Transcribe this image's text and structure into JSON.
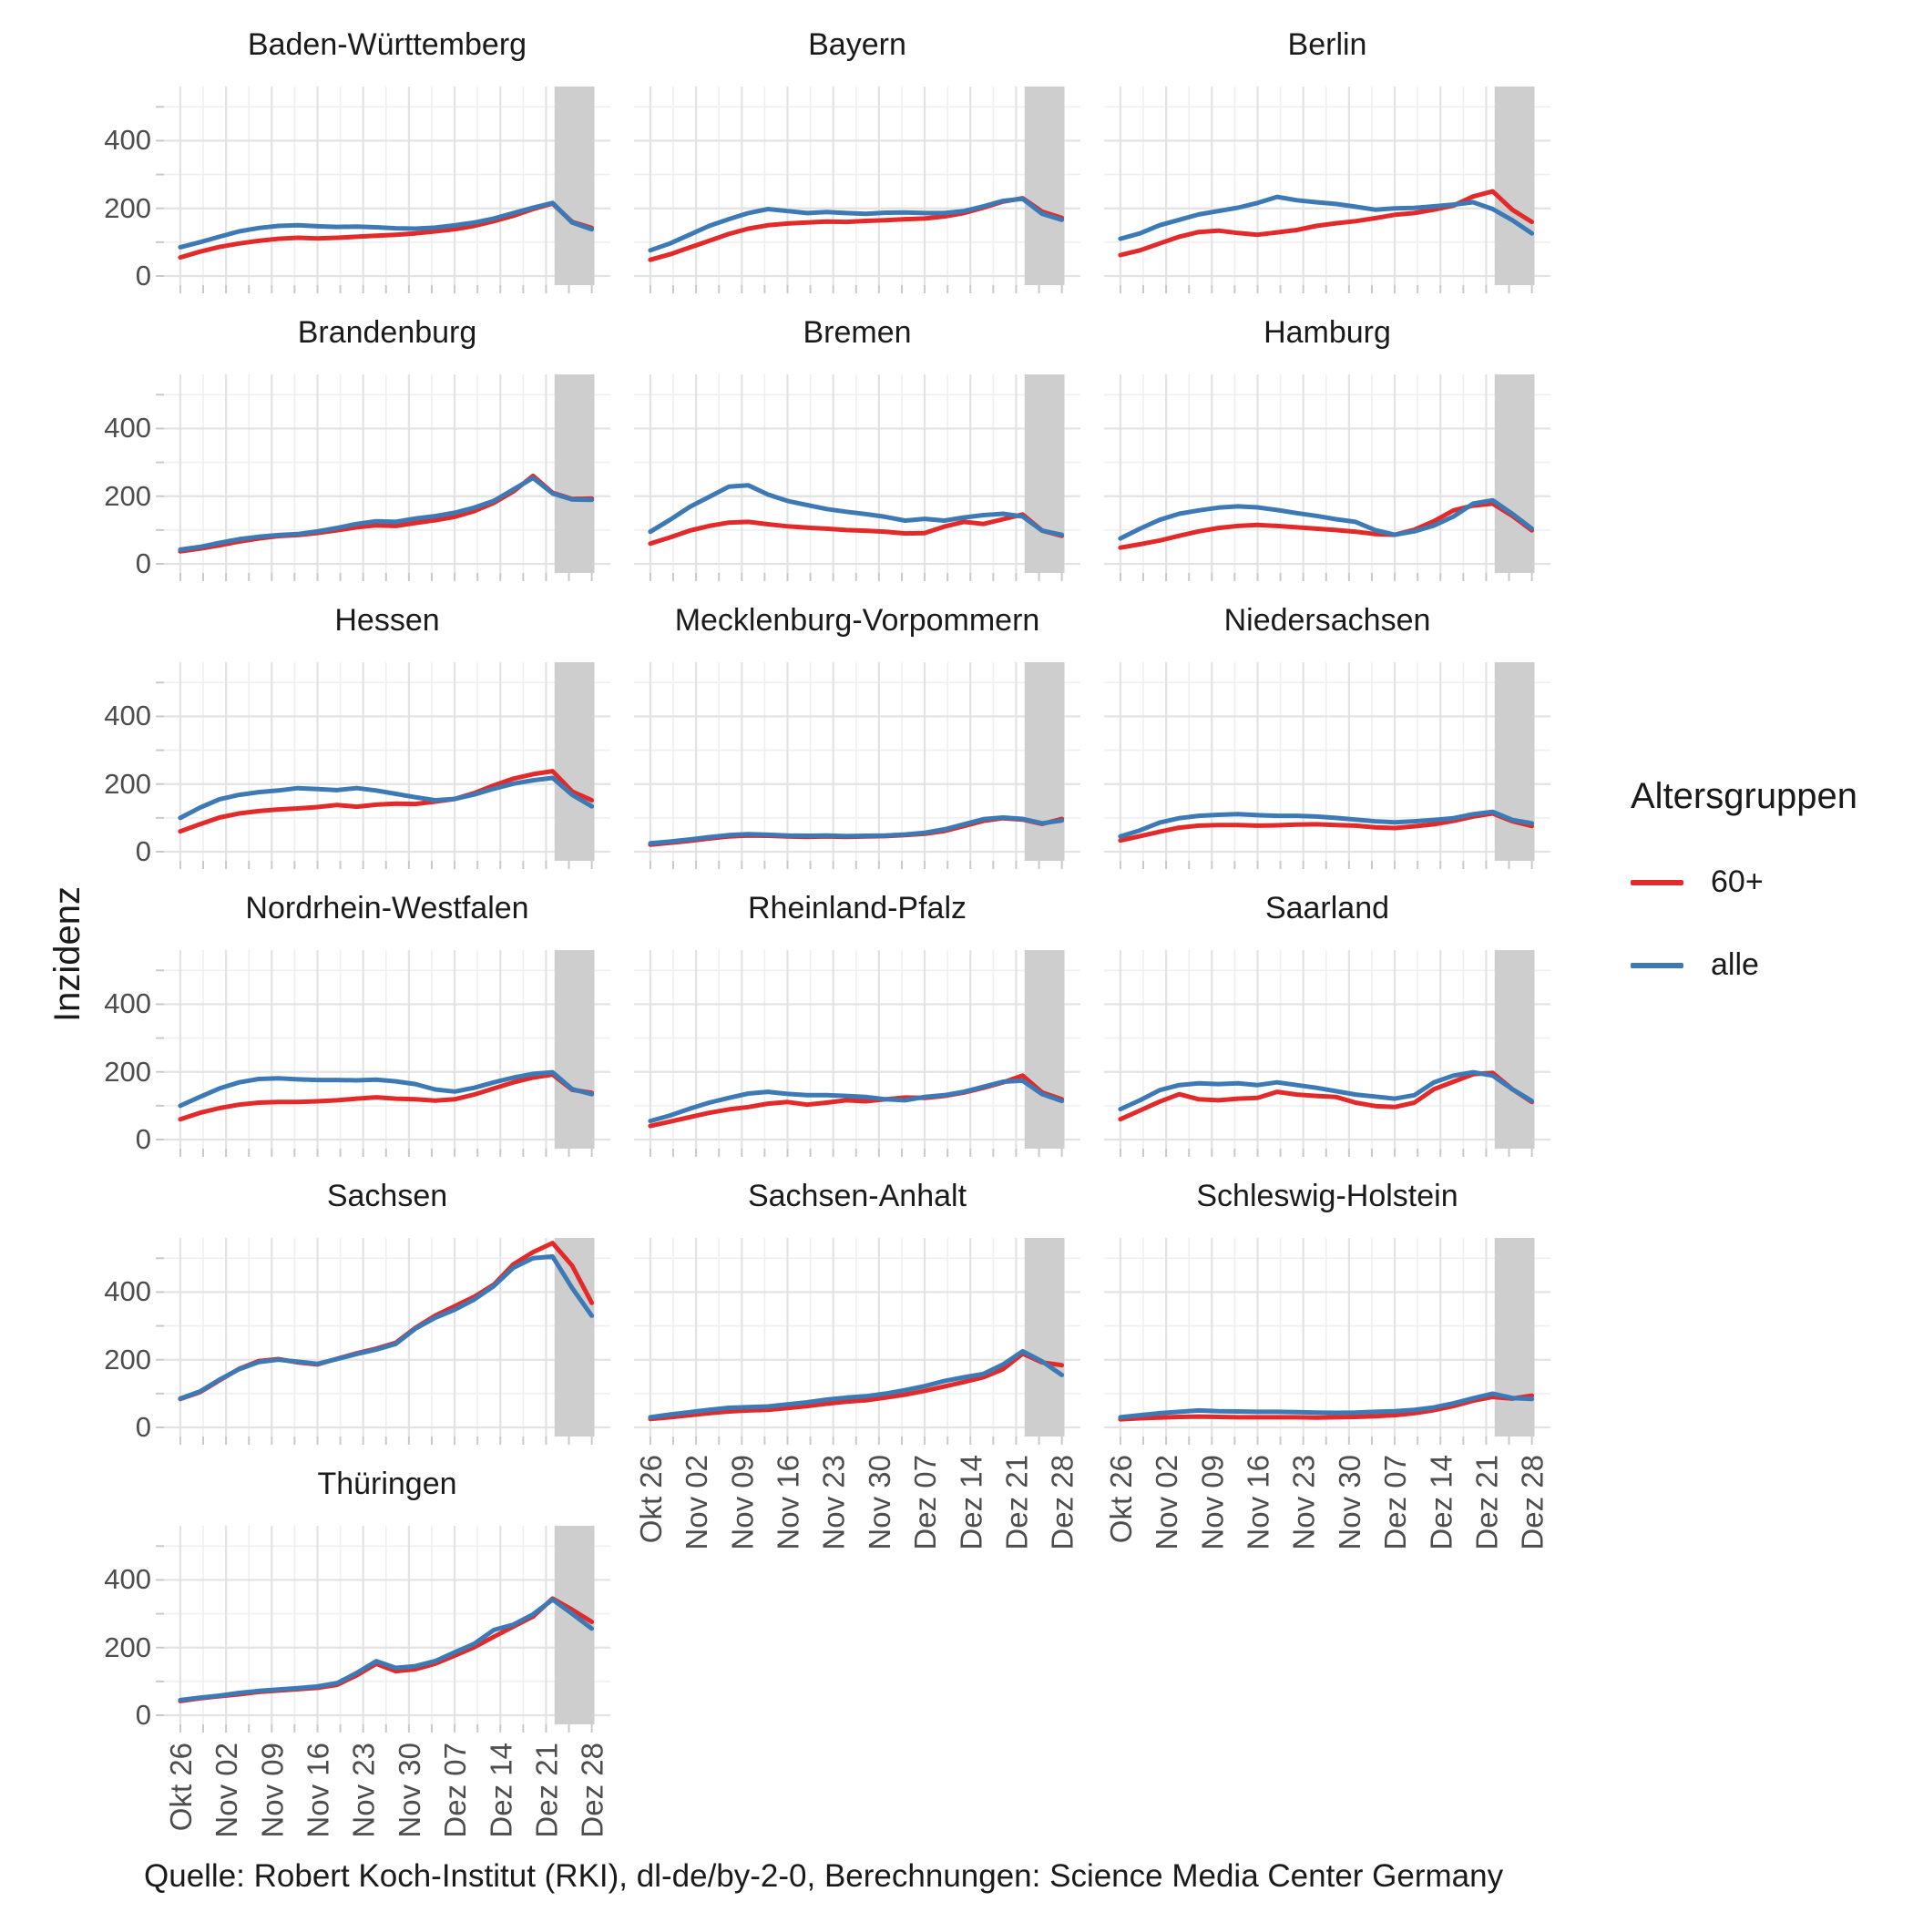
{
  "figure": {
    "background": "#ffffff"
  },
  "y_axis": {
    "title": "Inzidenz",
    "tick_values": [
      0,
      200,
      400
    ],
    "tick_labels": [
      "0",
      "200",
      "400"
    ],
    "minor_values": [
      100,
      300,
      500
    ],
    "range": [
      -28,
      572
    ]
  },
  "x_axis": {
    "tick_days": [
      0,
      7,
      14,
      21,
      28,
      35,
      42,
      49,
      56,
      63
    ],
    "tick_labels": [
      "Okt 26",
      "Nov 02",
      "Nov 09",
      "Nov 16",
      "Nov 23",
      "Nov 30",
      "Dez 07",
      "Dez 14",
      "Dez 21",
      "Dez 28"
    ],
    "minor_days": [
      3.5,
      10.5,
      17.5,
      24.5,
      31.5,
      38.5,
      45.5,
      52.5,
      59.5
    ]
  },
  "legend": {
    "title": "Altersgruppen",
    "entries": [
      {
        "label": "60+",
        "color": "#e32a2b"
      },
      {
        "label": "alle",
        "color": "#3d7ab5"
      }
    ]
  },
  "caption": "Quelle: Robert Koch-Institut (RKI), dl-de/by-2-0, Berechnungen: Science Media Center Germany",
  "colors": {
    "line_60plus": "#e32a2b",
    "line_alle": "#3d7ab5",
    "grid_major": "#e3e3e3",
    "grid_minor": "#efefef",
    "tick_mark": "#c9c9c9",
    "axis_text": "#4d4d4d",
    "highlight_region": "#cecece"
  },
  "highlight_region": {
    "from_day": 57.3,
    "to_day": 63.4
  },
  "chart_data": {
    "type": "line",
    "facet_by": "Bundesland",
    "ylabel": "Inzidenz",
    "ylim": [
      -28,
      572
    ],
    "grid": true,
    "legend_position": "right",
    "series_names": [
      "60+",
      "alle"
    ],
    "x_start_label": "Okt 26",
    "x_end_label": "Dez 28",
    "days": [
      0,
      3,
      6,
      9,
      12,
      15,
      18,
      21,
      24,
      27,
      30,
      33,
      36,
      39,
      42,
      45,
      48,
      51,
      54,
      57,
      60,
      63
    ],
    "facets": [
      {
        "name": "Baden-Württemberg",
        "alle": [
          85,
          100,
          116,
          132,
          142,
          148,
          150,
          147,
          145,
          146,
          144,
          141,
          140,
          143,
          150,
          158,
          170,
          186,
          202,
          216,
          158,
          138
        ],
        "60+": [
          55,
          72,
          86,
          96,
          104,
          110,
          113,
          111,
          113,
          116,
          119,
          122,
          126,
          132,
          138,
          148,
          162,
          178,
          198,
          214,
          160,
          142
        ]
      },
      {
        "name": "Bayern",
        "alle": [
          76,
          96,
          122,
          148,
          168,
          186,
          198,
          192,
          186,
          189,
          186,
          184,
          187,
          188,
          186,
          186,
          192,
          206,
          222,
          228,
          184,
          166
        ],
        "60+": [
          48,
          64,
          84,
          104,
          124,
          140,
          150,
          155,
          158,
          161,
          160,
          163,
          165,
          168,
          170,
          176,
          186,
          202,
          220,
          230,
          190,
          172
        ]
      },
      {
        "name": "Berlin",
        "alle": [
          110,
          126,
          150,
          166,
          182,
          192,
          202,
          216,
          234,
          224,
          218,
          213,
          205,
          196,
          200,
          201,
          206,
          211,
          218,
          198,
          165,
          126
        ],
        "60+": [
          62,
          76,
          96,
          116,
          130,
          134,
          127,
          122,
          129,
          136,
          148,
          156,
          162,
          171,
          181,
          186,
          196,
          208,
          235,
          250,
          196,
          160
        ]
      },
      {
        "name": "Brandenburg",
        "alle": [
          42,
          50,
          62,
          73,
          80,
          85,
          88,
          96,
          106,
          118,
          126,
          124,
          134,
          141,
          151,
          166,
          186,
          220,
          254,
          208,
          190,
          189
        ],
        "60+": [
          37,
          45,
          55,
          66,
          75,
          82,
          85,
          91,
          99,
          108,
          114,
          112,
          121,
          129,
          139,
          156,
          180,
          214,
          260,
          210,
          192,
          193
        ]
      },
      {
        "name": "Bremen",
        "alle": [
          95,
          130,
          168,
          198,
          228,
          232,
          205,
          186,
          174,
          162,
          154,
          147,
          139,
          128,
          133,
          128,
          137,
          144,
          148,
          140,
          98,
          86
        ],
        "60+": [
          60,
          78,
          98,
          112,
          122,
          124,
          117,
          111,
          107,
          104,
          100,
          98,
          95,
          90,
          91,
          110,
          124,
          118,
          132,
          146,
          98,
          83
        ]
      },
      {
        "name": "Hamburg",
        "alle": [
          75,
          104,
          130,
          148,
          158,
          166,
          170,
          167,
          159,
          150,
          142,
          132,
          124,
          100,
          86,
          96,
          113,
          140,
          178,
          188,
          148,
          104
        ],
        "60+": [
          48,
          58,
          69,
          83,
          96,
          106,
          112,
          115,
          112,
          108,
          104,
          100,
          95,
          88,
          86,
          101,
          126,
          158,
          172,
          178,
          142,
          99
        ]
      },
      {
        "name": "Hessen",
        "alle": [
          100,
          130,
          155,
          168,
          176,
          181,
          188,
          185,
          182,
          188,
          181,
          171,
          161,
          152,
          156,
          169,
          186,
          201,
          211,
          218,
          168,
          134
        ],
        "60+": [
          60,
          81,
          101,
          113,
          120,
          125,
          128,
          132,
          138,
          133,
          139,
          142,
          141,
          148,
          156,
          173,
          196,
          216,
          229,
          238,
          178,
          152
        ]
      },
      {
        "name": "Mecklenburg-Vorpommern",
        "alle": [
          25,
          30,
          36,
          43,
          49,
          52,
          50,
          48,
          47,
          48,
          46,
          47,
          48,
          51,
          56,
          66,
          81,
          96,
          101,
          97,
          84,
          92
        ],
        "60+": [
          21,
          26,
          32,
          39,
          45,
          48,
          47,
          45,
          44,
          45,
          44,
          45,
          46,
          49,
          53,
          61,
          76,
          91,
          99,
          95,
          82,
          97
        ]
      },
      {
        "name": "Niedersachsen",
        "alle": [
          45,
          63,
          86,
          99,
          106,
          109,
          111,
          108,
          106,
          106,
          104,
          100,
          95,
          90,
          87,
          90,
          94,
          99,
          111,
          118,
          94,
          84
        ],
        "60+": [
          33,
          46,
          59,
          71,
          77,
          79,
          79,
          77,
          78,
          80,
          81,
          79,
          77,
          72,
          70,
          75,
          81,
          91,
          104,
          113,
          90,
          76
        ]
      },
      {
        "name": "Nordrhein-Westfalen",
        "alle": [
          100,
          126,
          151,
          169,
          179,
          181,
          178,
          176,
          176,
          175,
          177,
          172,
          164,
          148,
          142,
          153,
          169,
          183,
          194,
          199,
          149,
          134
        ],
        "60+": [
          60,
          79,
          93,
          103,
          109,
          111,
          111,
          113,
          116,
          121,
          125,
          121,
          119,
          115,
          119,
          133,
          151,
          169,
          183,
          192,
          147,
          138
        ]
      },
      {
        "name": "Rheinland-Pfalz",
        "alle": [
          55,
          71,
          91,
          109,
          123,
          136,
          141,
          135,
          131,
          131,
          129,
          126,
          119,
          116,
          126,
          131,
          141,
          156,
          171,
          174,
          134,
          114
        ],
        "60+": [
          40,
          53,
          66,
          79,
          89,
          96,
          106,
          111,
          103,
          109,
          116,
          113,
          119,
          124,
          123,
          129,
          139,
          153,
          169,
          189,
          139,
          119
        ]
      },
      {
        "name": "Saarland",
        "alle": [
          90,
          116,
          146,
          161,
          166,
          164,
          166,
          161,
          169,
          161,
          153,
          143,
          133,
          127,
          121,
          131,
          169,
          189,
          199,
          189,
          149,
          114
        ],
        "60+": [
          60,
          86,
          112,
          134,
          119,
          116,
          121,
          123,
          141,
          133,
          129,
          126,
          109,
          99,
          96,
          109,
          149,
          171,
          193,
          197,
          149,
          111
        ]
      },
      {
        "name": "Sachsen",
        "alle": [
          85,
          106,
          141,
          172,
          193,
          200,
          194,
          188,
          202,
          217,
          230,
          247,
          292,
          324,
          348,
          378,
          418,
          472,
          500,
          505,
          412,
          330
        ],
        "60+": [
          84,
          104,
          139,
          173,
          196,
          202,
          192,
          186,
          203,
          219,
          233,
          250,
          294,
          330,
          358,
          386,
          422,
          482,
          518,
          545,
          478,
          368
        ]
      },
      {
        "name": "Sachsen-Anhalt",
        "alle": [
          30,
          38,
          45,
          52,
          58,
          60,
          62,
          68,
          74,
          82,
          88,
          92,
          100,
          110,
          122,
          137,
          148,
          158,
          186,
          225,
          195,
          155
        ],
        "60+": [
          25,
          30,
          36,
          42,
          47,
          50,
          52,
          57,
          63,
          70,
          76,
          80,
          88,
          97,
          108,
          121,
          134,
          148,
          172,
          218,
          192,
          184
        ]
      },
      {
        "name": "Schleswig-Holstein",
        "alle": [
          30,
          36,
          42,
          46,
          50,
          48,
          47,
          46,
          46,
          45,
          44,
          43,
          44,
          46,
          48,
          52,
          59,
          71,
          86,
          100,
          87,
          84
        ],
        "60+": [
          24,
          27,
          29,
          31,
          32,
          31,
          30,
          30,
          30,
          30,
          29,
          30,
          31,
          33,
          36,
          42,
          51,
          63,
          79,
          90,
          85,
          94
        ]
      },
      {
        "name": "Thüringen",
        "alle": [
          45,
          52,
          58,
          66,
          72,
          76,
          80,
          85,
          95,
          125,
          160,
          140,
          145,
          160,
          186,
          211,
          252,
          268,
          298,
          342,
          300,
          256
        ],
        "60+": [
          42,
          50,
          56,
          62,
          69,
          73,
          77,
          81,
          90,
          118,
          152,
          130,
          136,
          152,
          176,
          201,
          232,
          262,
          292,
          345,
          312,
          276
        ]
      }
    ]
  }
}
